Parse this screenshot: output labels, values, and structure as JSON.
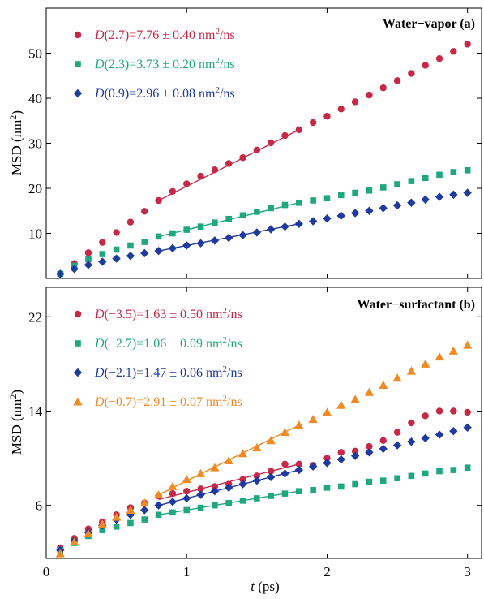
{
  "chart_data": [
    {
      "type": "scatter",
      "panel_label": "Water−vapor (a)",
      "ylabel": "MSD (nm²)",
      "xlabel": "t (ps)",
      "xlim": [
        0,
        3.1
      ],
      "ylim": [
        0,
        60
      ],
      "yticks": [
        10,
        20,
        30,
        40,
        50
      ],
      "xticks": [
        0,
        1,
        2,
        3
      ],
      "legend_position": "top-left",
      "series": [
        {
          "name": "D(2.7)=7.76 ± 0.40 nm²/ns",
          "marker": "circle",
          "color": "#c62848",
          "x": [
            0.1,
            0.2,
            0.3,
            0.4,
            0.5,
            0.6,
            0.7,
            0.8,
            0.9,
            1.0,
            1.1,
            1.2,
            1.3,
            1.4,
            1.5,
            1.6,
            1.7,
            1.8,
            1.9,
            2.0,
            2.1,
            2.2,
            2.3,
            2.4,
            2.5,
            2.6,
            2.7,
            2.8,
            2.9,
            3.0
          ],
          "y": [
            1.0,
            3.3,
            5.7,
            8.0,
            10.2,
            12.5,
            14.9,
            17.3,
            19.3,
            21.0,
            22.7,
            24.1,
            25.5,
            26.8,
            28.5,
            30.1,
            31.7,
            33.0,
            34.6,
            36.0,
            37.6,
            39.2,
            40.7,
            42.3,
            43.9,
            45.5,
            47.3,
            48.8,
            50.4,
            52.0
          ],
          "fit": {
            "x": [
              0.8,
              1.8
            ],
            "y": [
              17.3,
              33.0
            ]
          }
        },
        {
          "name": "D(2.3)=3.73 ± 0.20 nm²/ns",
          "marker": "square",
          "color": "#1fa880",
          "x": [
            0.1,
            0.2,
            0.3,
            0.4,
            0.5,
            0.6,
            0.7,
            0.8,
            0.9,
            1.0,
            1.1,
            1.2,
            1.3,
            1.4,
            1.5,
            1.6,
            1.7,
            1.8,
            1.9,
            2.0,
            2.1,
            2.2,
            2.3,
            2.4,
            2.5,
            2.6,
            2.7,
            2.8,
            2.9,
            3.0
          ],
          "y": [
            1.0,
            2.8,
            4.3,
            5.4,
            6.4,
            7.3,
            8.1,
            9.3,
            10.0,
            10.8,
            11.5,
            12.4,
            13.2,
            14.0,
            14.8,
            15.6,
            16.3,
            16.8,
            17.3,
            17.8,
            18.5,
            19.0,
            19.5,
            20.2,
            20.9,
            21.6,
            22.3,
            23.0,
            23.6,
            24.0
          ],
          "fit": {
            "x": [
              0.8,
              1.8
            ],
            "y": [
              9.3,
              16.8
            ]
          }
        },
        {
          "name": "D(0.9)=2.96 ± 0.08 nm²/ns",
          "marker": "diamond",
          "color": "#1f3a9e",
          "x": [
            0.1,
            0.2,
            0.3,
            0.4,
            0.5,
            0.6,
            0.7,
            0.8,
            0.9,
            1.0,
            1.1,
            1.2,
            1.3,
            1.4,
            1.5,
            1.6,
            1.7,
            1.8,
            1.9,
            2.0,
            2.1,
            2.2,
            2.3,
            2.4,
            2.5,
            2.6,
            2.7,
            2.8,
            2.9,
            3.0
          ],
          "y": [
            1.0,
            2.1,
            3.0,
            3.7,
            4.4,
            5.0,
            5.6,
            6.1,
            6.7,
            7.3,
            7.8,
            8.4,
            9.0,
            9.6,
            10.2,
            10.9,
            11.5,
            12.1,
            12.7,
            13.3,
            13.9,
            14.5,
            15.0,
            15.6,
            16.2,
            16.8,
            17.5,
            18.1,
            18.6,
            19.0
          ],
          "fit": {
            "x": [
              0.8,
              1.8
            ],
            "y": [
              6.1,
              12.1
            ]
          }
        }
      ]
    },
    {
      "type": "scatter",
      "panel_label": "Water−surfactant (b)",
      "ylabel": "MSD (nm²)",
      "xlabel": "t (ps)",
      "xlim": [
        0,
        3.1
      ],
      "ylim": [
        1.5,
        24.5
      ],
      "yticks": [
        6,
        14,
        22
      ],
      "xticks": [
        0,
        1,
        2,
        3
      ],
      "legend_position": "top-left",
      "series": [
        {
          "name": "D(−3.5)=1.63 ± 0.50 nm²/ns",
          "marker": "circle",
          "color": "#c62848",
          "x": [
            0.1,
            0.2,
            0.3,
            0.4,
            0.5,
            0.6,
            0.7,
            0.8,
            0.9,
            1.0,
            1.1,
            1.2,
            1.3,
            1.4,
            1.5,
            1.6,
            1.7,
            1.8,
            1.9,
            2.0,
            2.1,
            2.2,
            2.3,
            2.4,
            2.5,
            2.6,
            2.7,
            2.8,
            2.9,
            3.0
          ],
          "y": [
            2.4,
            3.2,
            4.0,
            4.6,
            5.2,
            5.8,
            6.2,
            6.8,
            7.0,
            7.2,
            7.4,
            7.6,
            7.8,
            8.2,
            8.5,
            8.9,
            9.5,
            9.5,
            9.4,
            10.0,
            10.5,
            10.6,
            11.0,
            11.5,
            12.2,
            13.0,
            13.6,
            14.0,
            14.0,
            13.9
          ],
          "fit": {
            "x": [
              0.8,
              1.8
            ],
            "y": [
              6.5,
              9.5
            ]
          }
        },
        {
          "name": "D(−2.7)=1.06 ± 0.09 nm²/ns",
          "marker": "square",
          "color": "#1fa880",
          "x": [
            0.1,
            0.2,
            0.3,
            0.4,
            0.5,
            0.6,
            0.7,
            0.8,
            0.9,
            1.0,
            1.1,
            1.2,
            1.3,
            1.4,
            1.5,
            1.6,
            1.7,
            1.8,
            1.9,
            2.0,
            2.1,
            2.2,
            2.3,
            2.4,
            2.5,
            2.6,
            2.7,
            2.8,
            2.9,
            3.0
          ],
          "y": [
            2.2,
            2.8,
            3.4,
            3.9,
            4.2,
            4.5,
            4.8,
            5.2,
            5.4,
            5.6,
            5.8,
            6.0,
            6.2,
            6.4,
            6.6,
            6.8,
            7.0,
            7.2,
            7.3,
            7.5,
            7.6,
            7.8,
            8.0,
            8.1,
            8.3,
            8.5,
            8.7,
            8.9,
            9.0,
            9.2
          ],
          "fit": {
            "x": [
              0.8,
              1.8
            ],
            "y": [
              5.2,
              7.2
            ]
          }
        },
        {
          "name": "D(−2.1)=1.47 ± 0.06 nm²/ns",
          "marker": "diamond",
          "color": "#1f3a9e",
          "x": [
            0.1,
            0.2,
            0.3,
            0.4,
            0.5,
            0.6,
            0.7,
            0.8,
            0.9,
            1.0,
            1.1,
            1.2,
            1.3,
            1.4,
            1.5,
            1.6,
            1.7,
            1.8,
            1.9,
            2.0,
            2.1,
            2.2,
            2.3,
            2.4,
            2.5,
            2.6,
            2.7,
            2.8,
            2.9,
            3.0
          ],
          "y": [
            2.2,
            3.0,
            3.7,
            4.3,
            4.8,
            5.2,
            5.6,
            6.0,
            6.3,
            6.6,
            6.9,
            7.2,
            7.5,
            7.8,
            8.1,
            8.4,
            8.7,
            9.0,
            9.3,
            9.6,
            9.9,
            10.2,
            10.5,
            10.8,
            11.1,
            11.4,
            11.7,
            12.0,
            12.3,
            12.6
          ],
          "fit": {
            "x": [
              0.8,
              1.8
            ],
            "y": [
              6.0,
              9.0
            ]
          }
        },
        {
          "name": "D(−0.7)=2.91 ± 0.07 nm²/ns",
          "marker": "triangle",
          "color": "#ef8a24",
          "x": [
            0.1,
            0.2,
            0.3,
            0.4,
            0.5,
            0.6,
            0.7,
            0.8,
            0.9,
            1.0,
            1.1,
            1.2,
            1.3,
            1.4,
            1.5,
            1.6,
            1.7,
            1.8,
            1.9,
            2.0,
            2.1,
            2.2,
            2.3,
            2.4,
            2.5,
            2.6,
            2.7,
            2.8,
            2.9,
            3.0
          ],
          "y": [
            1.9,
            2.9,
            3.6,
            4.4,
            5.0,
            5.6,
            6.2,
            6.9,
            7.6,
            8.2,
            8.7,
            9.2,
            9.8,
            10.4,
            10.9,
            11.5,
            12.2,
            12.8,
            13.3,
            13.9,
            14.5,
            15.0,
            15.6,
            16.2,
            16.8,
            17.4,
            18.0,
            18.6,
            19.1,
            19.6
          ],
          "fit": {
            "x": [
              0.8,
              1.8
            ],
            "y": [
              6.9,
              12.8
            ]
          }
        }
      ]
    }
  ]
}
